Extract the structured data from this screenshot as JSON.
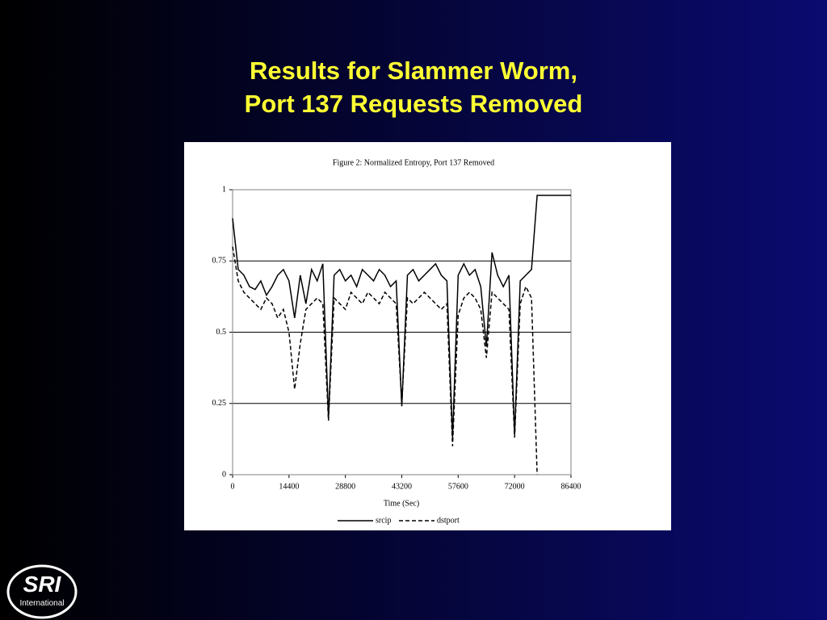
{
  "slide": {
    "title_lines": [
      "Results for Slammer Worm,",
      "Port 137 Requests Removed"
    ],
    "logo": {
      "name": "SRI",
      "subtitle": "International"
    }
  },
  "chart_data": {
    "type": "line",
    "title": "Figure 2: Normalized Entropy, Port 137 Removed",
    "x_label": "Time (Sec)",
    "x": [
      0,
      1440,
      2880,
      4320,
      5760,
      7200,
      8640,
      10080,
      11520,
      12960,
      14400,
      15840,
      17280,
      18720,
      20160,
      21600,
      23040,
      24480,
      25920,
      27360,
      28800,
      30240,
      31680,
      33120,
      34560,
      36000,
      37440,
      38880,
      40320,
      41760,
      43200,
      44640,
      46080,
      47520,
      48960,
      50400,
      51840,
      53280,
      54720,
      56160,
      57600,
      59040,
      60480,
      61920,
      63360,
      64800,
      66240,
      67680,
      69120,
      70560,
      72000,
      73440,
      74880,
      76320,
      77760,
      79200,
      80640,
      82080,
      83520,
      84960,
      86400
    ],
    "series": [
      {
        "name": "srcip",
        "color": "#000000",
        "dash": "solid",
        "values": [
          0.9,
          0.72,
          0.7,
          0.66,
          0.65,
          0.68,
          0.63,
          0.66,
          0.7,
          0.72,
          0.68,
          0.55,
          0.7,
          0.6,
          0.72,
          0.68,
          0.74,
          0.2,
          0.7,
          0.72,
          0.68,
          0.7,
          0.66,
          0.72,
          0.7,
          0.68,
          0.72,
          0.7,
          0.66,
          0.68,
          0.24,
          0.7,
          0.72,
          0.68,
          0.7,
          0.72,
          0.74,
          0.7,
          0.68,
          0.13,
          0.7,
          0.74,
          0.7,
          0.72,
          0.66,
          0.45,
          0.78,
          0.7,
          0.66,
          0.7,
          0.14,
          0.68,
          0.7,
          0.72,
          0.98,
          0.98,
          0.98,
          0.98,
          0.98,
          0.98,
          0.98
        ]
      },
      {
        "name": "dstport",
        "color": "#000000",
        "dash": "dashed",
        "values": [
          0.8,
          0.68,
          0.64,
          0.62,
          0.6,
          0.58,
          0.62,
          0.6,
          0.55,
          0.58,
          0.5,
          0.3,
          0.46,
          0.58,
          0.6,
          0.62,
          0.6,
          0.19,
          0.62,
          0.6,
          0.58,
          0.64,
          0.62,
          0.6,
          0.64,
          0.62,
          0.6,
          0.64,
          0.62,
          0.6,
          0.25,
          0.62,
          0.6,
          0.62,
          0.64,
          0.62,
          0.6,
          0.58,
          0.6,
          0.1,
          0.56,
          0.62,
          0.64,
          0.62,
          0.58,
          0.41,
          0.64,
          0.62,
          0.6,
          0.58,
          0.13,
          0.6,
          0.66,
          0.62,
          0,
          null,
          null,
          null,
          null,
          null,
          null
        ]
      }
    ],
    "xlim": [
      0,
      86400
    ],
    "xticks": [
      0,
      14400,
      28800,
      43200,
      57600,
      72000,
      86400
    ],
    "ylim": [
      0,
      1
    ],
    "yticks": [
      0,
      0.25,
      0.5,
      0.75,
      1
    ],
    "grid": true,
    "legend": "bottom"
  }
}
